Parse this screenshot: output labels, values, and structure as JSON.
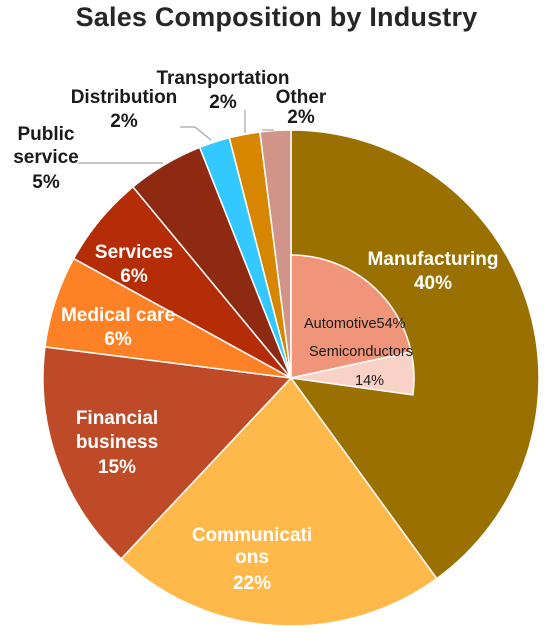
{
  "chart_data": {
    "type": "pie",
    "title": "Sales Composition by Industry",
    "slices": [
      {
        "label": "Manufacturing",
        "value": 40,
        "value_label": "40%",
        "color": "#9A7000"
      },
      {
        "label": "Communications",
        "value": 22,
        "value_label": "22%",
        "color": "#FFB84A"
      },
      {
        "label": "Financial business",
        "value": 15,
        "value_label": "15%",
        "color": "#BE4A28"
      },
      {
        "label": "Medical care",
        "value": 6,
        "value_label": "6%",
        "color": "#FF8126"
      },
      {
        "label": "Services",
        "value": 6,
        "value_label": "6%",
        "color": "#B52D06"
      },
      {
        "label": "Public service",
        "value": 5,
        "value_label": "5%",
        "color": "#8E2A12"
      },
      {
        "label": "Distribution",
        "value": 2,
        "value_label": "2%",
        "color": "#33C8FF"
      },
      {
        "label": "Transportation",
        "value": 2,
        "value_label": "2%",
        "color": "#D68600"
      },
      {
        "label": "Other",
        "value": 2,
        "value_label": "2%",
        "color": "#D09488"
      }
    ],
    "sub_breakdown": {
      "parent": "Manufacturing",
      "slices": [
        {
          "label": "Automotive",
          "value": 54,
          "value_label": "54%",
          "color": "#F0957A"
        },
        {
          "label": "Semiconductors",
          "value": 14,
          "value_label": "14%",
          "color": "#F8D2C6"
        }
      ]
    }
  }
}
